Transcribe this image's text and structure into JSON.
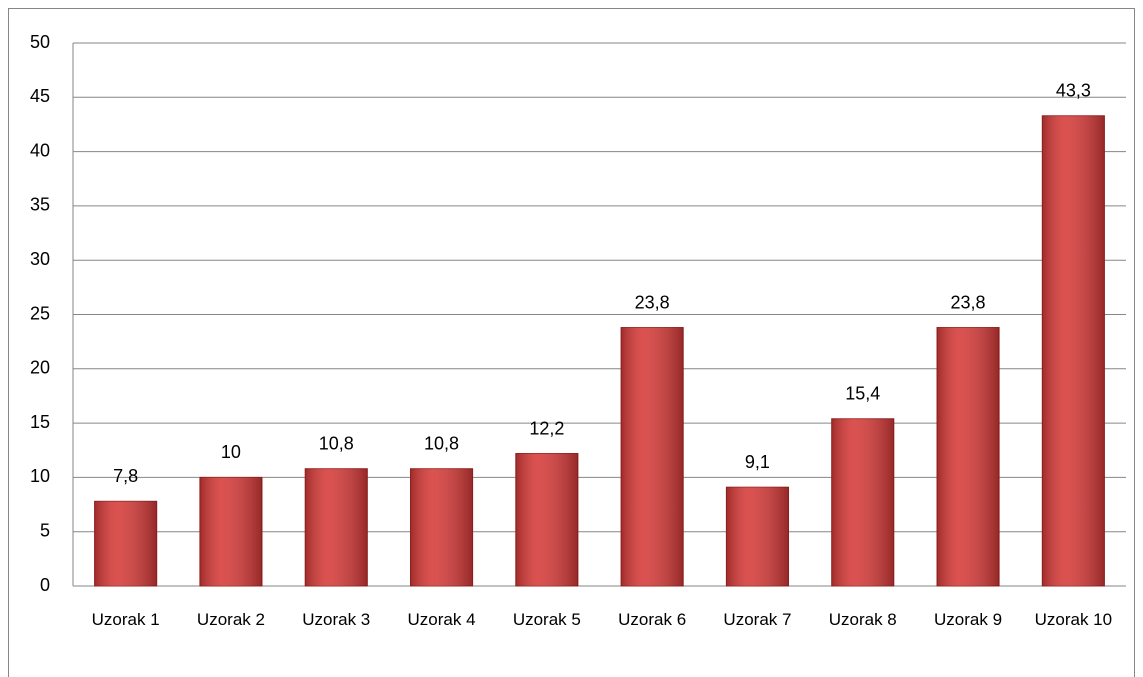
{
  "chart_data": {
    "type": "bar",
    "categories": [
      "Uzorak 1",
      "Uzorak 2",
      "Uzorak 3",
      "Uzorak 4",
      "Uzorak 5",
      "Uzorak 6",
      "Uzorak 7",
      "Uzorak 8",
      "Uzorak 9",
      "Uzorak 10"
    ],
    "values": [
      7.8,
      10,
      10.8,
      10.8,
      12.2,
      23.8,
      9.1,
      15.4,
      23.8,
      43.3
    ],
    "value_labels": [
      "7,8",
      "10",
      "10,8",
      "10,8",
      "12,2",
      "23,8",
      "9,1",
      "15,4",
      "23,8",
      "43,3"
    ],
    "color": "#d63a38",
    "ylim": [
      0,
      50
    ],
    "yticks": [
      0,
      5,
      10,
      15,
      20,
      25,
      30,
      35,
      40,
      45,
      50
    ],
    "grid": true
  }
}
